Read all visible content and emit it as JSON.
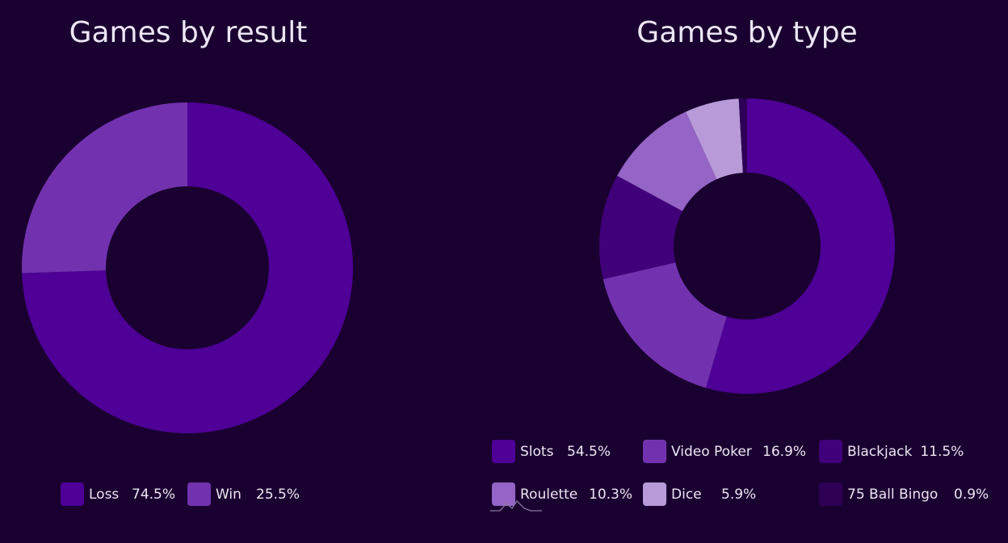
{
  "chart_data": [
    {
      "type": "pie",
      "donut": true,
      "title": "Games by result",
      "slices": [
        {
          "label": "Loss",
          "value": 74.5,
          "display": "74.5%",
          "color": "#4e0097"
        },
        {
          "label": "Win",
          "value": 25.5,
          "display": "25.5%",
          "color": "#7232b0"
        }
      ],
      "legend": "bottom"
    },
    {
      "type": "pie",
      "donut": true,
      "title": "Games by type",
      "slices": [
        {
          "label": "Slots",
          "value": 54.5,
          "display": "54.5%",
          "color": "#4e0097"
        },
        {
          "label": "Video Poker",
          "value": 16.9,
          "display": "16.9%",
          "color": "#7232b0"
        },
        {
          "label": "Blackjack",
          "value": 11.5,
          "display": "11.5%",
          "color": "#40007a"
        },
        {
          "label": "Roulette",
          "value": 10.3,
          "display": "10.3%",
          "color": "#9464c6"
        },
        {
          "label": "Dice",
          "value": 5.9,
          "display": "5.9%",
          "color": "#b99ad8"
        },
        {
          "label": "75 Ball Bingo",
          "value": 0.9,
          "display": "0.9%",
          "color": "#2d0056"
        }
      ],
      "legend": "bottom"
    }
  ],
  "colors": {
    "background": "#1a0030",
    "text": "#ece6f4"
  }
}
